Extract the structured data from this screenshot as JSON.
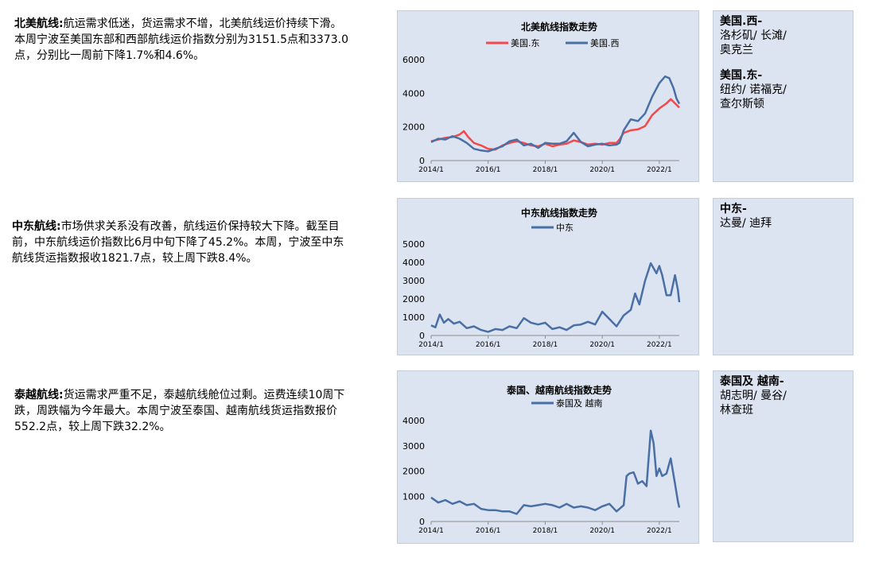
{
  "sections": [
    {
      "heading": "北美航线:",
      "text": "航运需求低迷，货运需求不增，北美航线运价持续下滑。本周宁波至美国东部和西部航线运价指数分别为3151.5点和3373.0点，分别比一周前下降1.7%和4.6%。"
    },
    {
      "heading": "中东航线:",
      "text": "市场供求关系没有改善，航线运价保持较大下降。截至目前，中东航线运价指数比6月中旬下降了45.2%。本周，宁波至中东航线货运指数报收1821.7点，较上周下跌8.4%。"
    },
    {
      "heading": "泰越航线:",
      "text": "货运需求严重不足，泰越航线舱位过剩。运费连续10周下跌，周跌幅为今年最大。本周宁波至泰国、越南航线货运指数报价552.2点，较上周下跌32.2%。"
    }
  ],
  "side_notes": [
    {
      "blocks": [
        {
          "title": "美国.西-",
          "lines": [
            "洛杉矶/ 长滩/",
            "奥克兰"
          ]
        },
        {
          "title": "美国.东-",
          "lines": [
            "纽约/  诺福克/",
            "查尔斯顿"
          ]
        }
      ]
    },
    {
      "blocks": [
        {
          "title": "中东-",
          "lines": [
            "达曼/ 迪拜"
          ]
        }
      ]
    },
    {
      "blocks": [
        {
          "title": "泰国及 越南-",
          "lines": [
            "胡志明/ 曼谷/",
            "林查班"
          ]
        }
      ]
    }
  ],
  "chart_data": [
    {
      "type": "line",
      "title": "北美航线指数走势",
      "x_range": [
        2014.0,
        2022.7
      ],
      "xticks": [
        "2014/1",
        "2016/1",
        "2018/1",
        "2020/1",
        "2022/1"
      ],
      "ylim": [
        0,
        6000
      ],
      "yticks": [
        0,
        2000,
        4000,
        6000
      ],
      "legend_position": "top",
      "series": [
        {
          "name": "美国.东",
          "color": "#f4484b",
          "x": [
            2014.0,
            2014.25,
            2014.5,
            2014.75,
            2015.0,
            2015.15,
            2015.3,
            2015.5,
            2015.75,
            2016.0,
            2016.25,
            2016.5,
            2016.75,
            2017.0,
            2017.25,
            2017.5,
            2017.75,
            2018.0,
            2018.25,
            2018.5,
            2018.75,
            2019.0,
            2019.25,
            2019.5,
            2019.75,
            2020.0,
            2020.25,
            2020.5,
            2020.6,
            2020.75,
            2021.0,
            2021.25,
            2021.5,
            2021.75,
            2022.0,
            2022.25,
            2022.4,
            2022.55,
            2022.7
          ],
          "y": [
            1150,
            1250,
            1350,
            1400,
            1550,
            1750,
            1400,
            1050,
            900,
            700,
            650,
            900,
            1050,
            1150,
            1050,
            900,
            850,
            1000,
            850,
            950,
            1000,
            1200,
            1100,
            950,
            1000,
            950,
            1050,
            1050,
            1250,
            1650,
            1800,
            1850,
            2050,
            2700,
            3100,
            3400,
            3650,
            3400,
            3150
          ]
        },
        {
          "name": "美国.西",
          "color": "#4a6fa5",
          "x": [
            2014.0,
            2014.25,
            2014.5,
            2014.75,
            2015.0,
            2015.25,
            2015.5,
            2015.75,
            2016.0,
            2016.25,
            2016.5,
            2016.75,
            2017.0,
            2017.25,
            2017.5,
            2017.75,
            2018.0,
            2018.25,
            2018.5,
            2018.75,
            2019.0,
            2019.25,
            2019.5,
            2019.75,
            2020.0,
            2020.25,
            2020.5,
            2020.6,
            2020.75,
            2021.0,
            2021.25,
            2021.5,
            2021.75,
            2022.0,
            2022.2,
            2022.35,
            2022.5,
            2022.6,
            2022.7
          ],
          "y": [
            1100,
            1300,
            1250,
            1450,
            1300,
            1050,
            700,
            600,
            550,
            700,
            850,
            1150,
            1250,
            900,
            1000,
            750,
            1050,
            1000,
            1000,
            1150,
            1650,
            1100,
            850,
            950,
            1000,
            900,
            950,
            1050,
            1800,
            2450,
            2350,
            2800,
            3800,
            4600,
            5000,
            4900,
            4300,
            3700,
            3373
          ]
        }
      ]
    },
    {
      "type": "line",
      "title": "中东航线指数走势",
      "x_range": [
        2014.0,
        2022.7
      ],
      "xticks": [
        "2014/1",
        "2016/1",
        "2018/1",
        "2020/1",
        "2022/1"
      ],
      "ylim": [
        0,
        5000
      ],
      "yticks": [
        0,
        1000,
        2000,
        3000,
        4000,
        5000
      ],
      "legend_position": "top",
      "series": [
        {
          "name": "中东",
          "color": "#4a6fa5",
          "x": [
            2014.0,
            2014.15,
            2014.3,
            2014.45,
            2014.6,
            2014.8,
            2015.0,
            2015.25,
            2015.5,
            2015.75,
            2016.0,
            2016.25,
            2016.5,
            2016.75,
            2017.0,
            2017.25,
            2017.5,
            2017.75,
            2018.0,
            2018.25,
            2018.5,
            2018.75,
            2019.0,
            2019.25,
            2019.5,
            2019.75,
            2020.0,
            2020.25,
            2020.5,
            2020.75,
            2021.0,
            2021.15,
            2021.3,
            2021.5,
            2021.7,
            2021.9,
            2022.0,
            2022.1,
            2022.25,
            2022.4,
            2022.55,
            2022.65,
            2022.7
          ],
          "y": [
            550,
            450,
            1150,
            700,
            900,
            650,
            750,
            400,
            500,
            300,
            200,
            350,
            300,
            500,
            400,
            950,
            700,
            600,
            700,
            350,
            450,
            300,
            550,
            600,
            750,
            600,
            1300,
            900,
            500,
            1100,
            1400,
            2300,
            1700,
            3000,
            3950,
            3400,
            3800,
            3300,
            2200,
            2200,
            3300,
            2500,
            1822
          ]
        }
      ]
    },
    {
      "type": "line",
      "title": "泰国、越南航线指数走势",
      "x_range": [
        2014.0,
        2022.7
      ],
      "xticks": [
        "2014/1",
        "2016/1",
        "2018/1",
        "2020/1",
        "2022/1"
      ],
      "ylim": [
        0,
        4000
      ],
      "yticks": [
        0,
        1000,
        2000,
        3000,
        4000
      ],
      "legend_position": "top",
      "series": [
        {
          "name": "泰国及 越南",
          "color": "#4a6fa5",
          "x": [
            2014.0,
            2014.25,
            2014.5,
            2014.75,
            2015.0,
            2015.25,
            2015.5,
            2015.75,
            2016.0,
            2016.25,
            2016.5,
            2016.75,
            2017.0,
            2017.25,
            2017.5,
            2017.75,
            2018.0,
            2018.25,
            2018.5,
            2018.75,
            2019.0,
            2019.25,
            2019.5,
            2019.75,
            2020.0,
            2020.25,
            2020.5,
            2020.75,
            2020.85,
            2020.95,
            2021.1,
            2021.25,
            2021.4,
            2021.55,
            2021.7,
            2021.8,
            2021.9,
            2022.0,
            2022.1,
            2022.25,
            2022.4,
            2022.55,
            2022.65,
            2022.7
          ],
          "y": [
            950,
            750,
            850,
            700,
            800,
            650,
            700,
            500,
            450,
            450,
            400,
            400,
            300,
            650,
            600,
            650,
            700,
            650,
            550,
            700,
            550,
            600,
            550,
            450,
            600,
            700,
            400,
            650,
            1800,
            1900,
            1950,
            1500,
            1600,
            1400,
            3600,
            3100,
            1800,
            2100,
            1800,
            1900,
            2500,
            1500,
            800,
            552
          ]
        }
      ]
    }
  ]
}
